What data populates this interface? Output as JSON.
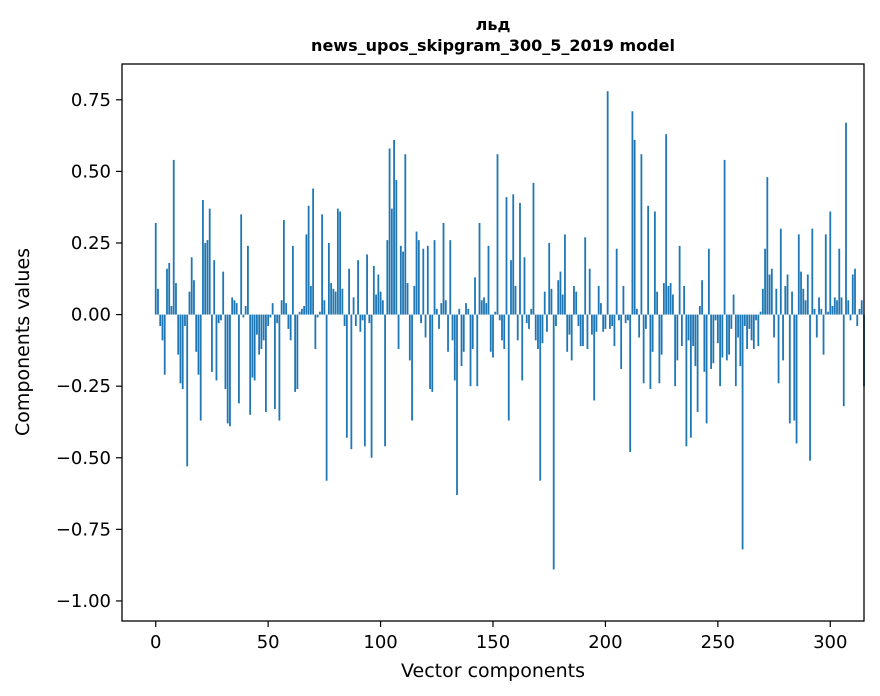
{
  "chart_data": {
    "type": "bar",
    "title": "льд",
    "subtitle": "news_upos_skipgram_300_5_2019 model",
    "xlabel": "Vector components",
    "ylabel": "Components values",
    "xlim": [
      -15,
      315
    ],
    "ylim": [
      -1.07,
      0.875
    ],
    "xticks": [
      0,
      50,
      100,
      150,
      200,
      250,
      300
    ],
    "xtick_labels": [
      "0",
      "50",
      "100",
      "150",
      "200",
      "250",
      "300"
    ],
    "yticks": [
      -1.0,
      -0.75,
      -0.5,
      -0.25,
      0.0,
      0.25,
      0.5,
      0.75
    ],
    "ytick_labels": [
      "−1.00",
      "−0.75",
      "−0.50",
      "−0.25",
      "0.00",
      "0.25",
      "0.50",
      "0.75"
    ],
    "bar_color": "#1f77b4",
    "values": [
      0.32,
      0.09,
      -0.04,
      -0.09,
      -0.21,
      0.16,
      0.18,
      0.03,
      0.54,
      0.11,
      -0.14,
      -0.24,
      -0.26,
      -0.04,
      -0.53,
      0.08,
      0.2,
      0.12,
      -0.13,
      -0.21,
      -0.37,
      0.4,
      0.25,
      0.26,
      0.37,
      -0.2,
      0.19,
      -0.23,
      -0.03,
      -0.02,
      0.15,
      -0.26,
      -0.38,
      -0.39,
      0.06,
      0.05,
      0.04,
      -0.31,
      0.35,
      -0.01,
      0.03,
      0.24,
      -0.35,
      -0.22,
      -0.23,
      -0.07,
      -0.14,
      -0.12,
      -0.09,
      -0.34,
      -0.04,
      -0.01,
      0.04,
      -0.33,
      -0.03,
      -0.37,
      0.05,
      0.33,
      0.04,
      -0.05,
      -0.09,
      0.24,
      -0.27,
      -0.26,
      0.01,
      0.02,
      0.03,
      0.28,
      0.38,
      0.1,
      0.44,
      -0.12,
      -0.01,
      0.01,
      0.35,
      0.05,
      -0.58,
      0.25,
      0.11,
      0.09,
      0.08,
      0.37,
      0.36,
      0.09,
      -0.04,
      -0.43,
      0.16,
      -0.47,
      0.06,
      -0.04,
      0.19,
      -0.06,
      -0.02,
      -0.46,
      0.21,
      -0.03,
      -0.5,
      0.17,
      0.07,
      0.14,
      0.08,
      0.05,
      -0.46,
      0.26,
      0.58,
      0.37,
      0.61,
      0.47,
      -0.12,
      0.24,
      0.22,
      0.56,
      0.11,
      -0.16,
      -0.37,
      0.1,
      0.29,
      0.26,
      -0.03,
      0.23,
      -0.08,
      0.24,
      -0.26,
      -0.27,
      0.26,
      0.02,
      -0.05,
      0.04,
      0.32,
      0.05,
      -0.13,
      0.26,
      -0.09,
      -0.23,
      -0.63,
      0.02,
      -0.18,
      -0.13,
      0.04,
      0.02,
      -0.25,
      -0.12,
      0.13,
      -0.25,
      0.32,
      0.05,
      0.06,
      0.04,
      0.24,
      -0.13,
      -0.15,
      0.01,
      0.56,
      -0.02,
      -0.09,
      -0.12,
      0.41,
      -0.37,
      0.19,
      0.42,
      0.1,
      -0.09,
      0.39,
      -0.23,
      0.2,
      -0.03,
      -0.05,
      0.02,
      0.46,
      -0.09,
      -0.12,
      -0.58,
      -0.1,
      0.08,
      -0.06,
      0.25,
      0.09,
      -0.89,
      -0.04,
      0.12,
      0.15,
      0.07,
      0.28,
      -0.13,
      -0.07,
      -0.16,
      0.1,
      0.08,
      -0.04,
      -0.11,
      -0.11,
      0.27,
      -0.12,
      0.16,
      -0.07,
      -0.3,
      -0.06,
      0.1,
      0.04,
      -0.06,
      -0.05,
      0.78,
      -0.05,
      -0.04,
      -0.11,
      0.23,
      -0.02,
      -0.19,
      0.1,
      -0.03,
      -0.02,
      -0.48,
      0.71,
      0.61,
      0.02,
      -0.08,
      0.56,
      -0.24,
      -0.05,
      0.38,
      -0.26,
      -0.13,
      0.36,
      0.08,
      -0.24,
      -0.14,
      0.11,
      0.63,
      0.1,
      0.11,
      0.07,
      -0.25,
      -0.16,
      0.24,
      -0.11,
      0.1,
      -0.46,
      -0.09,
      -0.43,
      -0.11,
      -0.18,
      -0.34,
      0.03,
      0.12,
      -0.2,
      -0.38,
      0.23,
      -0.19,
      -0.17,
      -0.02,
      -0.1,
      -0.25,
      -0.15,
      0.54,
      -0.16,
      -0.14,
      -0.05,
      0.07,
      -0.25,
      -0.08,
      -0.18,
      -0.82,
      -0.04,
      -0.12,
      -0.05,
      -0.09,
      -0.12,
      -0.02,
      -0.11,
      0.01,
      0.09,
      0.23,
      0.48,
      0.14,
      0.16,
      -0.08,
      0.09,
      -0.24,
      0.3,
      -0.16,
      0.1,
      0.14,
      -0.38,
      0.08,
      -0.37,
      -0.45,
      0.28,
      0.15,
      0.09,
      0.05,
      0.14,
      -0.51,
      0.3,
      0.02,
      -0.08,
      0.06,
      0.02,
      -0.14,
      0.28,
      0.01,
      0.36,
      0.03,
      0.06,
      0.05,
      0.23,
      0.06,
      -0.32,
      0.67,
      0.05,
      -0.02,
      0.14,
      0.16,
      -0.04,
      0.02,
      0.05,
      -0.25
    ]
  }
}
